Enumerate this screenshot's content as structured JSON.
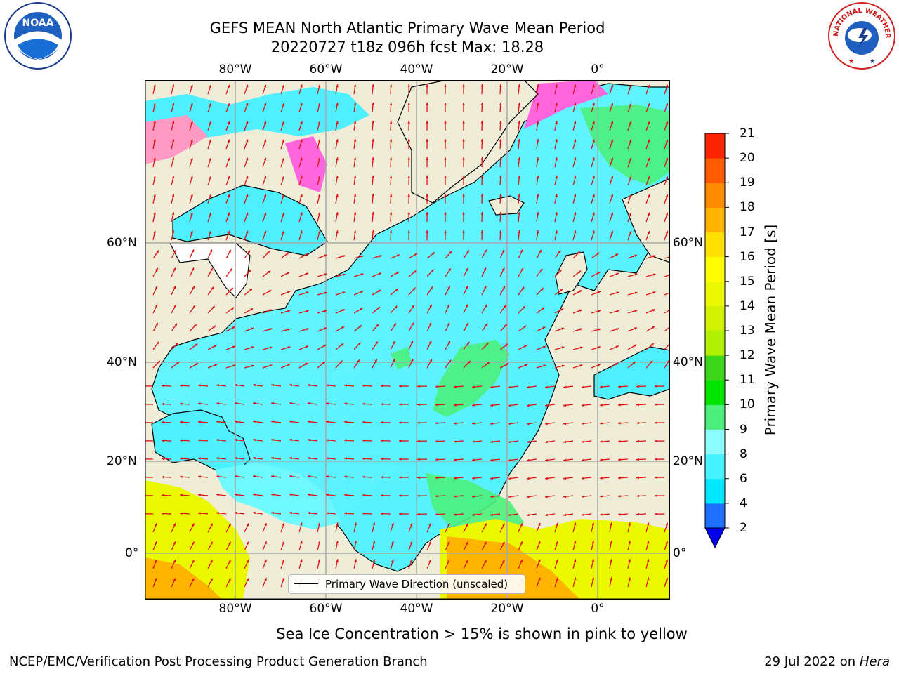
{
  "title": {
    "line1": "GEFS MEAN North Atlantic Primary Wave Mean Period",
    "line2": "20220727 t18z 096h fcst   Max: 18.28"
  },
  "map": {
    "lon_labels": [
      "80°W",
      "60°W",
      "40°W",
      "20°W",
      "0°"
    ],
    "lat_labels": [
      "60°N",
      "40°N",
      "20°N",
      "0°"
    ],
    "legend_label": "Primary Wave Direction (unscaled)"
  },
  "colorbar": {
    "label": "Primary Wave Mean Period [s]",
    "ticks": [
      "2",
      "4",
      "6",
      "8",
      "9",
      "10",
      "11",
      "12",
      "13",
      "14",
      "15",
      "16",
      "17",
      "18",
      "19",
      "20",
      "21"
    ],
    "colors": [
      "#1f6fff",
      "#00e8ff",
      "#45f2ff",
      "#8cfdff",
      "#4cef7c",
      "#00e400",
      "#3ed61a",
      "#b0f000",
      "#d0f200",
      "#eaf800",
      "#ffff00",
      "#ffe000",
      "#ffb400",
      "#ff8c00",
      "#ff5a00",
      "#ff2400"
    ],
    "extend_color": "#0000ee"
  },
  "subtitle": "Sea Ice Concentration > 15% is shown in pink to yellow",
  "footer": {
    "left": "NCEP/EMC/Verification Post Processing Product Generation Branch",
    "right_date": "29 Jul 2022 on ",
    "right_machine": "Hera"
  },
  "logos": {
    "noaa": "NOAA",
    "nws": "NATIONAL WEATHER SERVICE"
  }
}
